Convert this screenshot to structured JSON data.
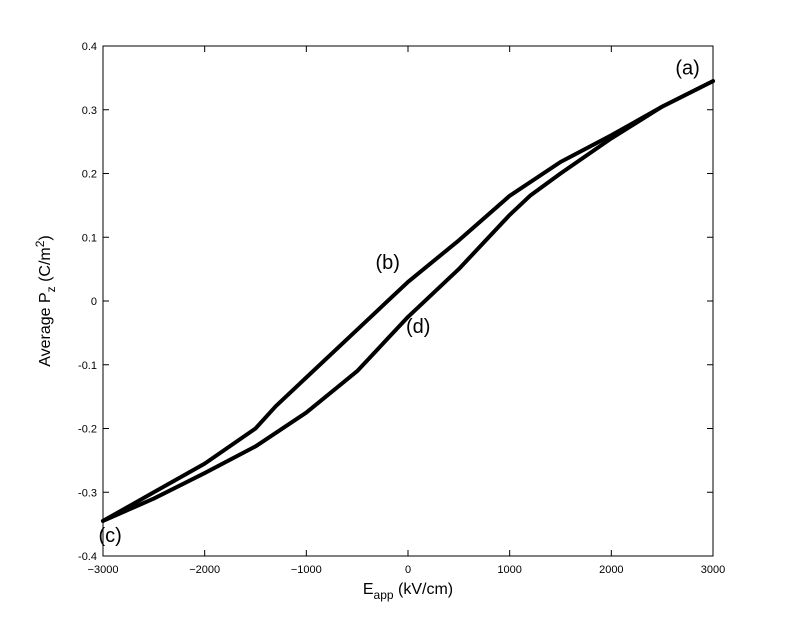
{
  "chart_data": {
    "type": "line",
    "xlabel": {
      "main": "E",
      "sub": "app",
      "rest": " (kV/cm)"
    },
    "ylabel": {
      "pre": "Average P",
      "sub": "z",
      "mid": " (C/m",
      "sup": "2",
      "post": ")"
    },
    "xlim": [
      -3000,
      3000
    ],
    "ylim": [
      -0.4,
      0.4
    ],
    "xticks": [
      -3000,
      -2000,
      -1000,
      0,
      1000,
      2000,
      3000
    ],
    "xtick_labels": [
      "−3000",
      "−2000",
      "−1000",
      "0",
      "1000",
      "2000",
      "3000"
    ],
    "yticks": [
      -0.4,
      -0.3,
      -0.2,
      -0.1,
      0,
      0.1,
      0.2,
      0.3,
      0.4
    ],
    "ytick_labels": [
      "-0.4",
      "-0.3",
      "-0.2",
      "-0.1",
      "0",
      "0.1",
      "0.2",
      "0.3",
      "0.4"
    ],
    "grid": false,
    "series": [
      {
        "color": "#000000",
        "x": [
          3000,
          2500,
          2000,
          1500,
          1000,
          500,
          0,
          -500,
          -1000,
          -1300,
          -1500,
          -2000,
          -2500,
          -3000
        ],
        "y": [
          0.345,
          0.305,
          0.26,
          0.218,
          0.165,
          0.095,
          0.03,
          -0.045,
          -0.12,
          -0.165,
          -0.2,
          -0.255,
          -0.3,
          -0.345
        ]
      },
      {
        "color": "#000000",
        "x": [
          -3000,
          -2500,
          -2000,
          -1500,
          -1000,
          -500,
          0,
          500,
          1000,
          1200,
          1500,
          2000,
          2500,
          3000
        ],
        "y": [
          -0.345,
          -0.31,
          -0.27,
          -0.228,
          -0.175,
          -0.11,
          -0.025,
          0.05,
          0.135,
          0.165,
          0.2,
          0.255,
          0.305,
          0.345
        ]
      }
    ],
    "annotations": [
      {
        "text": "(a)",
        "x": 2750,
        "y": 0.355
      },
      {
        "text": "(b)",
        "x": -200,
        "y": 0.05
      },
      {
        "text": "(c)",
        "x": -2930,
        "y": -0.378
      },
      {
        "text": "(d)",
        "x": 100,
        "y": -0.05
      }
    ]
  }
}
